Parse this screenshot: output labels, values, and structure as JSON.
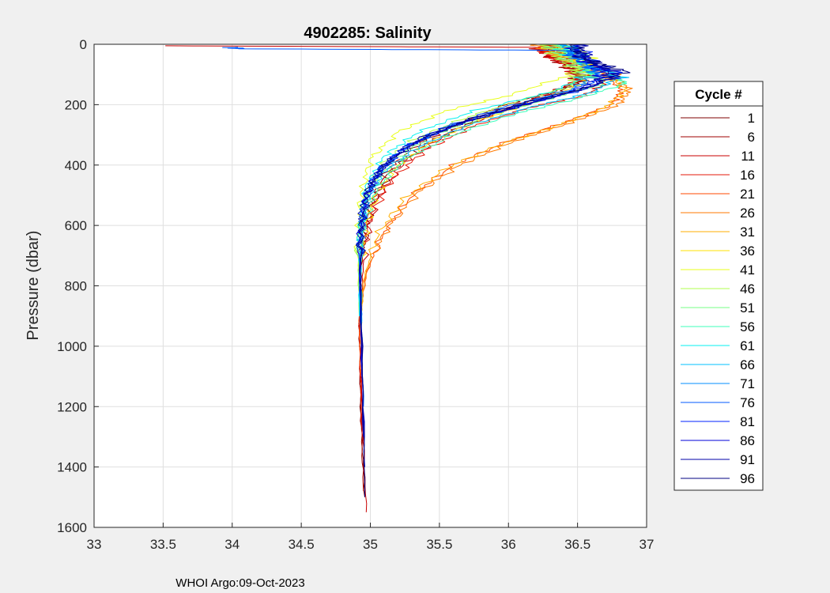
{
  "chart_data": {
    "type": "line",
    "title": "4902285:  Salinity",
    "xlabel": "",
    "ylabel": "Pressure (dbar)",
    "xlim": [
      33,
      37
    ],
    "ylim": [
      0,
      1600
    ],
    "y_reversed": true,
    "grid": true,
    "x_ticks": [
      33,
      33.5,
      34,
      34.5,
      35,
      35.5,
      36,
      36.5,
      37
    ],
    "x_tick_labels": [
      "33",
      "33.5",
      "34",
      "34.5",
      "35",
      "35.5",
      "36",
      "36.5",
      "37"
    ],
    "y_ticks": [
      0,
      200,
      400,
      600,
      800,
      1000,
      1200,
      1400,
      1600
    ],
    "y_tick_labels": [
      "0",
      "200",
      "400",
      "600",
      "800",
      "1000",
      "1200",
      "1400",
      "1600"
    ],
    "legend": {
      "title": "Cycle #",
      "position": "right-outside",
      "entries": [
        {
          "label": "1",
          "color": "#7f0000"
        },
        {
          "label": "6",
          "color": "#9f0000"
        },
        {
          "label": "11",
          "color": "#c80000"
        },
        {
          "label": "16",
          "color": "#e41a0a"
        },
        {
          "label": "21",
          "color": "#ff4a00"
        },
        {
          "label": "26",
          "color": "#ff7a00"
        },
        {
          "label": "31",
          "color": "#ffae00"
        },
        {
          "label": "36",
          "color": "#ffe000"
        },
        {
          "label": "41",
          "color": "#e8ff18"
        },
        {
          "label": "46",
          "color": "#b0ff4c"
        },
        {
          "label": "51",
          "color": "#74ff84"
        },
        {
          "label": "56",
          "color": "#3cffba"
        },
        {
          "label": "61",
          "color": "#06f2f0"
        },
        {
          "label": "66",
          "color": "#00c0ff"
        },
        {
          "label": "71",
          "color": "#008cff"
        },
        {
          "label": "76",
          "color": "#0058ff"
        },
        {
          "label": "81",
          "color": "#0020ff"
        },
        {
          "label": "86",
          "color": "#0000d8"
        },
        {
          "label": "91",
          "color": "#0000a8"
        },
        {
          "label": "96",
          "color": "#000080"
        }
      ]
    },
    "series": [
      {
        "name": "1",
        "color": "#7f0000",
        "x": [
          36.3,
          36.35,
          36.5,
          36.55,
          36.35,
          36.05,
          35.72,
          35.4,
          35.15,
          35.0,
          34.94,
          34.92,
          34.93,
          34.96
        ],
        "y": [
          0,
          40,
          80,
          120,
          160,
          200,
          260,
          330,
          420,
          540,
          700,
          900,
          1200,
          1500
        ]
      },
      {
        "name": "6",
        "color": "#9f0000",
        "x": [
          36.28,
          36.32,
          36.45,
          36.52,
          36.3,
          35.98,
          35.65,
          35.35,
          35.12,
          34.99,
          34.93,
          34.92,
          34.93,
          34.95
        ],
        "y": [
          0,
          40,
          80,
          120,
          160,
          200,
          260,
          330,
          420,
          540,
          700,
          900,
          1200,
          1480
        ]
      },
      {
        "name": "11",
        "color": "#c80000",
        "x": [
          33.5,
          36.2,
          36.3,
          36.45,
          36.5,
          36.25,
          35.9,
          35.55,
          35.25,
          35.05,
          34.96,
          34.93,
          34.94,
          34.97
        ],
        "y": [
          5,
          10,
          40,
          80,
          120,
          170,
          230,
          300,
          390,
          510,
          660,
          880,
          1200,
          1550
        ]
      },
      {
        "name": "16",
        "color": "#e41a0a",
        "x": [
          36.25,
          36.3,
          36.55,
          36.7,
          36.55,
          36.15,
          35.75,
          35.4,
          35.15,
          34.99,
          34.93,
          34.92,
          34.94
        ],
        "y": [
          0,
          40,
          80,
          130,
          170,
          210,
          270,
          350,
          450,
          580,
          740,
          950,
          1300
        ]
      },
      {
        "name": "21",
        "color": "#ff4a00",
        "x": [
          36.3,
          36.4,
          36.7,
          36.82,
          36.75,
          36.4,
          36.0,
          35.6,
          35.3,
          35.1,
          34.97,
          34.92,
          34.93
        ],
        "y": [
          0,
          40,
          100,
          150,
          200,
          260,
          320,
          400,
          500,
          620,
          760,
          900,
          1100
        ]
      },
      {
        "name": "26",
        "color": "#ff7a00",
        "x": [
          36.2,
          36.35,
          36.75,
          36.88,
          36.8,
          36.45,
          36.05,
          35.65,
          35.35,
          35.12,
          34.98,
          34.93,
          34.94
        ],
        "y": [
          0,
          40,
          100,
          150,
          200,
          260,
          320,
          400,
          490,
          610,
          740,
          880,
          1100
        ]
      },
      {
        "name": "31",
        "color": "#ffae00",
        "x": [
          36.35,
          36.4,
          36.7,
          36.85,
          36.7,
          36.35,
          35.95,
          35.55,
          35.25,
          35.05,
          34.95,
          34.93
        ],
        "y": [
          0,
          40,
          100,
          150,
          210,
          270,
          330,
          410,
          510,
          630,
          780,
          950
        ]
      },
      {
        "name": "36",
        "color": "#ffe000",
        "x": [
          36.4,
          36.45,
          36.6,
          36.55,
          36.2,
          35.8,
          35.45,
          35.2,
          35.05,
          34.97,
          34.93,
          34.93
        ],
        "y": [
          0,
          40,
          80,
          130,
          190,
          250,
          320,
          400,
          490,
          600,
          740,
          950
        ]
      },
      {
        "name": "41",
        "color": "#e8ff18",
        "x": [
          36.45,
          36.6,
          36.45,
          36.0,
          35.55,
          35.2,
          35.0,
          34.93,
          34.91,
          34.92
        ],
        "y": [
          0,
          50,
          100,
          170,
          220,
          290,
          380,
          500,
          650,
          900
        ]
      },
      {
        "name": "46",
        "color": "#b0ff4c",
        "x": [
          36.25,
          36.35,
          36.5,
          36.45,
          36.05,
          35.65,
          35.3,
          35.08,
          34.96,
          34.91,
          34.92
        ],
        "y": [
          0,
          40,
          90,
          140,
          190,
          250,
          320,
          400,
          500,
          640,
          900
        ]
      },
      {
        "name": "51",
        "color": "#74ff84",
        "x": [
          36.3,
          36.4,
          36.55,
          36.7,
          36.3,
          35.9,
          35.45,
          35.15,
          34.98,
          34.92,
          34.92
        ],
        "y": [
          0,
          40,
          90,
          130,
          180,
          230,
          300,
          390,
          500,
          650,
          900
        ]
      },
      {
        "name": "56",
        "color": "#3cffba",
        "x": [
          36.35,
          36.45,
          36.75,
          36.85,
          36.5,
          36.05,
          35.6,
          35.25,
          35.04,
          34.94,
          34.92
        ],
        "y": [
          0,
          40,
          100,
          130,
          180,
          230,
          300,
          380,
          480,
          620,
          850
        ]
      },
      {
        "name": "61",
        "color": "#06f2f0",
        "x": [
          36.4,
          36.55,
          36.6,
          36.3,
          35.75,
          35.35,
          35.1,
          34.97,
          34.92,
          34.92
        ],
        "y": [
          0,
          50,
          100,
          160,
          220,
          290,
          370,
          470,
          620,
          900
        ]
      },
      {
        "name": "66",
        "color": "#00c0ff",
        "x": [
          36.45,
          36.55,
          36.8,
          36.6,
          36.15,
          35.7,
          35.35,
          35.1,
          34.97,
          34.93,
          34.94
        ],
        "y": [
          0,
          50,
          110,
          160,
          210,
          270,
          340,
          420,
          520,
          660,
          1000
        ]
      },
      {
        "name": "71",
        "color": "#008cff",
        "x": [
          36.4,
          36.5,
          36.65,
          36.45,
          36.0,
          35.6,
          35.25,
          35.05,
          34.95,
          34.92,
          34.94
        ],
        "y": [
          0,
          50,
          100,
          150,
          210,
          270,
          340,
          420,
          520,
          680,
          1000
        ]
      },
      {
        "name": "76",
        "color": "#0058ff",
        "x": [
          34.0,
          34.05,
          36.4,
          36.55,
          36.7,
          36.4,
          35.95,
          35.5,
          35.2,
          35.02,
          34.94,
          34.92,
          34.95
        ],
        "y": [
          10,
          15,
          20,
          60,
          110,
          160,
          210,
          280,
          360,
          450,
          580,
          780,
          1200
        ]
      },
      {
        "name": "81",
        "color": "#0020ff",
        "x": [
          36.5,
          36.6,
          36.8,
          36.55,
          36.1,
          35.65,
          35.3,
          35.08,
          34.96,
          34.92,
          34.95
        ],
        "y": [
          0,
          60,
          100,
          150,
          200,
          260,
          330,
          410,
          510,
          660,
          1300
        ]
      },
      {
        "name": "86",
        "color": "#0000d8",
        "x": [
          36.45,
          36.55,
          36.7,
          36.5,
          36.05,
          35.6,
          35.25,
          35.05,
          34.95,
          34.92,
          34.95
        ],
        "y": [
          0,
          50,
          100,
          150,
          210,
          270,
          340,
          420,
          520,
          680,
          1300
        ]
      },
      {
        "name": "91",
        "color": "#0000a8",
        "x": [
          36.5,
          36.6,
          36.75,
          36.6,
          36.2,
          35.8,
          35.4,
          35.15,
          35.0,
          34.93,
          34.93,
          34.96
        ],
        "y": [
          0,
          60,
          90,
          140,
          190,
          240,
          300,
          380,
          470,
          600,
          800,
          1400
        ]
      },
      {
        "name": "96",
        "color": "#000080",
        "x": [
          36.45,
          36.55,
          36.85,
          36.6,
          36.15,
          35.7,
          35.35,
          35.1,
          34.97,
          34.93,
          34.93,
          34.96
        ],
        "y": [
          0,
          50,
          90,
          140,
          190,
          250,
          320,
          400,
          490,
          620,
          800,
          1500
        ]
      }
    ]
  },
  "footer_text": "WHOI Argo:09-Oct-2023"
}
